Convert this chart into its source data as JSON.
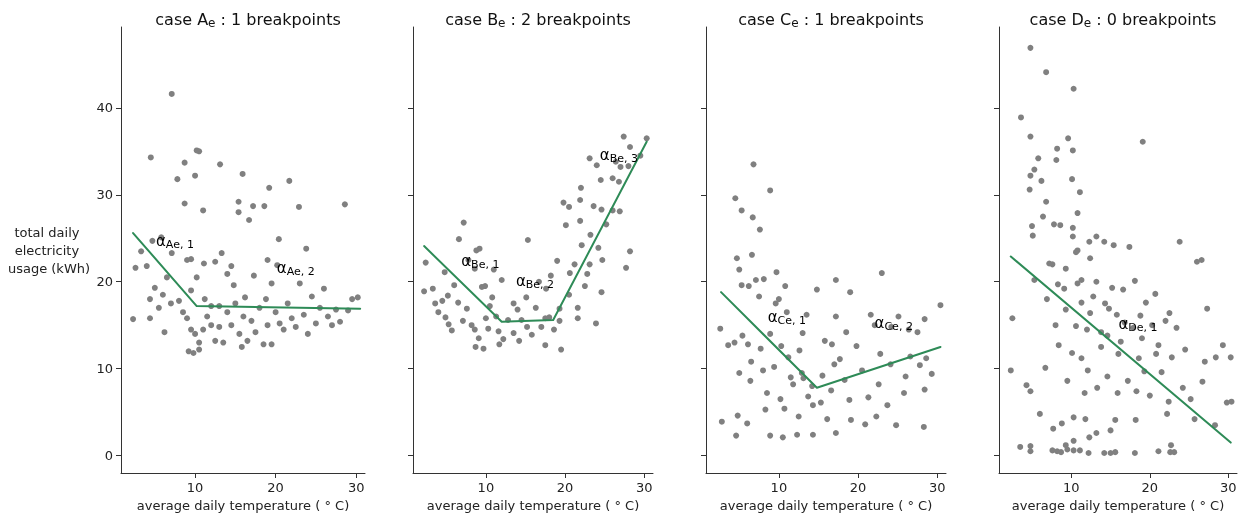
{
  "chart_data": [
    {
      "type": "scatter",
      "title": "case A$_{e}$ : 1 breakpoints",
      "xlabel": "average daily temperature ( ° C)",
      "ylabel": "total daily electricity usage (kWh)",
      "xlim": [
        0.8,
        31.1
      ],
      "xticks": [
        10,
        20,
        30
      ],
      "ylim": [
        -2,
        49.3
      ],
      "yticks": [
        0,
        10,
        20,
        30,
        40
      ],
      "series": [
        {
          "type": "scatter",
          "marker": "circle",
          "color": "#808080",
          "x": [
            7.1,
            4.5,
            10.2,
            10.5,
            8.7,
            13.1,
            10,
            7.8,
            15.9,
            21.7,
            19.2,
            28.6,
            8.7,
            15.4,
            15.4,
            17.2,
            18.6,
            22.9,
            11,
            16.7,
            20.4,
            23.8,
            5.8,
            4.7,
            3.3,
            7.1,
            13.3,
            9.0,
            9.5,
            11.1,
            12.5,
            14.5,
            20.2,
            19,
            2.6,
            4,
            17.3,
            14,
            2.3,
            4.4,
            6.2,
            5,
            6,
            7,
            8,
            8.5,
            9,
            9.5,
            10,
            10.5,
            9.2,
            9.8,
            10.5,
            11,
            11.5,
            12,
            12.5,
            13,
            13.5,
            14,
            14.5,
            15,
            15.5,
            15.8,
            16,
            16.5,
            17,
            17.5,
            18,
            18.5,
            19,
            19.5,
            20,
            20.5,
            21,
            21.5,
            22,
            22.5,
            23,
            23.5,
            24,
            24.5,
            25,
            25.5,
            26,
            26.5,
            27,
            27.5,
            28,
            29,
            29.5,
            30.2,
            19.5,
            18.8,
            16.2,
            13,
            11.2,
            10.2,
            9.5,
            12,
            14.8,
            6.5,
            5.5,
            4.4
          ],
          "values": [
            41.6,
            34.3,
            35.1,
            35,
            33.7,
            33.5,
            32.2,
            31.8,
            32.4,
            31.6,
            30.8,
            28.9,
            29,
            29.2,
            28,
            28.7,
            28.7,
            28.6,
            28.2,
            27.1,
            24.9,
            23.8,
            25.1,
            24.7,
            23.5,
            23.3,
            23.3,
            22.5,
            22.6,
            22.1,
            22.3,
            21.8,
            21.9,
            22.5,
            21.6,
            21.8,
            20.7,
            20.9,
            15.7,
            15.8,
            14.2,
            19.3,
            18.5,
            17.5,
            17.8,
            16.5,
            15.8,
            14.5,
            14,
            13,
            12,
            11.8,
            12.2,
            14.5,
            16,
            15,
            13.2,
            14.8,
            13,
            16.5,
            15,
            17.5,
            14,
            12.5,
            16,
            13.2,
            15.5,
            14.2,
            17,
            12.8,
            15,
            12.8,
            16.5,
            15.2,
            14.5,
            17.5,
            15.8,
            14.8,
            19.8,
            16.2,
            14,
            18.3,
            15.2,
            17,
            19.2,
            16,
            15,
            16.8,
            15.4,
            16.7,
            18,
            18.2,
            19.8,
            18,
            18.2,
            17.2,
            18,
            20.5,
            19,
            17.2,
            19.6,
            20.5,
            17,
            18
          ]
        },
        {
          "type": "line",
          "color": "#2e8b57",
          "x": [
            2.3,
            10.2,
            30.5
          ],
          "values": [
            25.6,
            17.2,
            16.9
          ]
        }
      ],
      "annotations": [
        {
          "text": "α$_{Ae, 1}$",
          "x": 7.5,
          "y": 20.1
        },
        {
          "text": "α$_{Ae, 2}$",
          "x": 22.5,
          "y": 17
        }
      ]
    },
    {
      "type": "scatter",
      "title": "case B$_{e}$ : 2 breakpoints",
      "xlabel": "average daily temperature ( ° C)",
      "xlim": [
        0.8,
        31.1
      ],
      "xticks": [
        10,
        20,
        30
      ],
      "ylim": [
        -2,
        49.3
      ],
      "yticks": [
        0,
        10,
        20,
        30,
        40
      ],
      "tick_labels": "x",
      "series": [
        {
          "type": "scatter",
          "marker": "circle",
          "color": "#808080",
          "x": [
            27.4,
            30.3,
            28.2,
            29.5,
            23.1,
            26.4,
            24,
            27,
            28,
            26,
            24.5,
            22,
            26.8,
            19.8,
            20.5,
            23.6,
            24.6,
            21.9,
            26,
            20.1,
            21.9,
            23.2,
            25.2,
            26.9,
            28.2,
            27.7,
            24.6,
            23.9,
            21.6,
            19.5,
            17.5,
            22.1,
            21.2,
            19,
            20.6,
            22.5,
            18.2,
            16.7,
            15.3,
            23.1,
            24.2,
            21.6,
            22.8,
            24.7,
            20.5,
            2.2,
            2.4,
            3.3,
            7.2,
            6.6,
            8.8,
            9.2,
            7.8,
            4.8,
            8.6,
            3.6,
            4,
            4.5,
            4.9,
            5.2,
            5.7,
            5.3,
            6.5,
            7.1,
            7.6,
            8.2,
            8.6,
            9.1,
            9.7,
            8.7,
            10,
            10.5,
            10.8,
            11.3,
            11.6,
            12.2,
            12.8,
            13.5,
            14,
            14.5,
            15.2,
            15.8,
            16.3,
            17,
            17.5,
            18,
            18.6,
            19.3,
            12,
            9.5,
            6,
            11,
            13.5,
            15.1,
            10.3,
            11.7,
            14.2,
            9.9,
            17.6,
            19.3
          ],
          "values": [
            36.7,
            36.5,
            35.5,
            34.5,
            34.2,
            33.8,
            33.4,
            33.2,
            33.3,
            31.9,
            31.7,
            30.8,
            31.5,
            29.1,
            28.6,
            28.7,
            28.3,
            29.4,
            28.2,
            26.5,
            27,
            25.4,
            26.6,
            28.1,
            23.5,
            21.6,
            18.8,
            15.2,
            15.8,
            12.2,
            12.7,
            24.2,
            22,
            22.4,
            21,
            19.5,
            20.7,
            20,
            24.8,
            22,
            23.9,
            17,
            20.9,
            22.5,
            18.5,
            18.9,
            22.2,
            19.2,
            26.8,
            24.9,
            23.6,
            23.8,
            22.5,
            21.1,
            21.5,
            17.5,
            16.5,
            17.8,
            15.9,
            18.4,
            14.4,
            15.1,
            17.6,
            15.5,
            16.9,
            15,
            14.5,
            13.5,
            12.3,
            12.5,
            15.8,
            17.2,
            18.2,
            16,
            14.3,
            13.4,
            15.6,
            14.1,
            16.8,
            15.6,
            14.8,
            13.9,
            17,
            14.8,
            15.8,
            15.9,
            14.5,
            16.9,
            20.2,
            19.4,
            19.6,
            21.4,
            17.5,
            18.2,
            14.6,
            12.8,
            13.2,
            19.5,
            19.2,
            15.5
          ]
        },
        {
          "type": "line",
          "color": "#2e8b57",
          "x": [
            2.2,
            12,
            18.5,
            30.3
          ],
          "values": [
            24.1,
            15.4,
            15.6,
            36.1
          ]
        }
      ],
      "annotations": [
        {
          "text": "α$_{Be, 1}$",
          "x": 9.3,
          "y": 17.8
        },
        {
          "text": "α$_{Be, 2}$",
          "x": 16.2,
          "y": 15.5
        },
        {
          "text": "α$_{Be, 3}$",
          "x": 26.8,
          "y": 30
        }
      ]
    },
    {
      "type": "scatter",
      "title": "case C$_{e}$ : 1 breakpoints",
      "xlabel": "average daily temperature ( ° C)",
      "xlim": [
        0.8,
        31.1
      ],
      "xticks": [
        10,
        20,
        30
      ],
      "ylim": [
        -2,
        49.3
      ],
      "yticks": [
        0,
        10,
        20,
        30,
        40
      ],
      "tick_labels": "x",
      "series": [
        {
          "type": "scatter",
          "marker": "circle",
          "color": "#808080",
          "x": [
            6.8,
            8.9,
            4.5,
            5.3,
            6.7,
            7.6,
            4.7,
            6.6,
            5,
            9.7,
            7.1,
            8.1,
            23,
            17.2,
            14.8,
            19,
            10.8,
            5.3,
            6.2,
            7.5,
            9.6,
            10,
            13.5,
            11,
            17.2,
            21.6,
            25.1,
            28.4,
            30.4,
            24.2,
            27.5,
            26.4,
            22.1,
            18.5,
            15.8,
            13,
            8.9,
            2.6,
            5.4,
            3.6,
            4.4,
            6.1,
            7.7,
            10.3,
            12.6,
            16.7,
            19.8,
            22.8,
            26.6,
            28.6,
            5,
            6.5,
            8,
            9.4,
            11.5,
            12.9,
            14.2,
            15.5,
            17,
            18.3,
            20.5,
            22.6,
            24.1,
            26,
            27.8,
            29.3,
            6.4,
            8.5,
            10.2,
            11.8,
            13.7,
            15.3,
            16.6,
            18.9,
            21.3,
            23.7,
            25.8,
            28.4,
            4.8,
            6,
            8.3,
            10.7,
            12.5,
            14.3,
            16.1,
            19.1,
            22.3,
            24.8,
            28.3,
            2.8,
            4.6,
            8.9,
            10.5,
            12.3,
            14.3,
            17.2,
            20.9,
            13.1,
            11.2,
            17.7
          ],
          "values": [
            33.5,
            30.5,
            29.6,
            28.2,
            27.4,
            26,
            22.7,
            23.1,
            21.4,
            21.1,
            20.2,
            20.3,
            21,
            20.2,
            19.1,
            18.8,
            19.5,
            19.6,
            19.5,
            18.3,
            17.5,
            18,
            16.2,
            16.5,
            16,
            16.2,
            16,
            15.7,
            17.3,
            14.8,
            14.2,
            14.5,
            15,
            14.2,
            13.2,
            14.1,
            14,
            14.6,
            13.8,
            12.7,
            13,
            12.8,
            12.3,
            12.6,
            12.1,
            12.8,
            12.6,
            11.7,
            11.4,
            11.2,
            9.5,
            10.8,
            9.8,
            10.2,
            9,
            9.5,
            8,
            9.2,
            10.5,
            8.7,
            9.8,
            8.2,
            10.5,
            9.1,
            10.4,
            9.4,
            8.6,
            7.2,
            6.5,
            8.2,
            6.8,
            6.1,
            7.5,
            6.4,
            6.7,
            5.8,
            7.2,
            7.6,
            4.6,
            3.7,
            5.3,
            5.4,
            4.5,
            5.8,
            4.2,
            4.1,
            4.5,
            3.5,
            3.3,
            3.9,
            2.3,
            2.3,
            2.1,
            2.4,
            2.4,
            2.6,
            3.6,
            8.9,
            11.3,
            11.1
          ]
        },
        {
          "type": "line",
          "color": "#2e8b57",
          "x": [
            2.7,
            14.8,
            30.4
          ],
          "values": [
            18.8,
            7.8,
            12.5
          ]
        }
      ],
      "annotations": [
        {
          "text": "α$_{Ce, 1}$",
          "x": 11,
          "y": 11.3
        },
        {
          "text": "α$_{Ce, 2}$",
          "x": 24.5,
          "y": 10.7
        }
      ]
    },
    {
      "type": "scatter",
      "title": "case D$_{e}$ : 0 breakpoints",
      "xlabel": "average daily temperature ( ° C)",
      "xlim": [
        0.8,
        31.1
      ],
      "xticks": [
        10,
        20,
        30
      ],
      "ylim": [
        -2,
        49.3
      ],
      "yticks": [
        0,
        10,
        20,
        30,
        40
      ],
      "tick_labels": "x",
      "series": [
        {
          "type": "scatter",
          "marker": "circle",
          "color": "#808080",
          "x": [
            4.8,
            6.8,
            10.3,
            3.6,
            4.8,
            9.6,
            8.2,
            10.2,
            19.1,
            5.8,
            8.1,
            5.3,
            4.8,
            10.1,
            6.2,
            4.7,
            11.1,
            6.8,
            10.8,
            6.4,
            5,
            7.8,
            8.6,
            10.2,
            5.1,
            10.2,
            13.2,
            12.3,
            14.2,
            15.4,
            17.4,
            23.8,
            10.6,
            10.8,
            12.4,
            26,
            26.6,
            7.2,
            7.6,
            9.3,
            11.3,
            13.2,
            18.1,
            5.3,
            8.3,
            9.1,
            10.8,
            15.2,
            16.6,
            20.7,
            6.9,
            11.3,
            14.3,
            19.5,
            9.3,
            12.4,
            15.8,
            18.8,
            22.5,
            27.3,
            2.5,
            8,
            10.6,
            12,
            13.8,
            16.8,
            17.9,
            20.3,
            22,
            23.4,
            14.6,
            16.3,
            19,
            21.1,
            24.5,
            29.3,
            8.4,
            10.1,
            11.3,
            13.8,
            16,
            18.6,
            20.8,
            22.8,
            27,
            28.4,
            30.3,
            2.3,
            6.7,
            9.5,
            12.1,
            14.6,
            17.2,
            19.3,
            21.5,
            24.2,
            26.7,
            4.3,
            4.8,
            11.7,
            13.3,
            15.9,
            18.3,
            20,
            22.4,
            25.2,
            29.8,
            6,
            8.8,
            10.3,
            11.8,
            15.6,
            18.2,
            22.2,
            25.7,
            28.3,
            7.7,
            9.3,
            10.3,
            12.3,
            13.2,
            15,
            3.5,
            4.8,
            4.8,
            7.6,
            8.2,
            8.7,
            9.5,
            10.3,
            11.1,
            12.2,
            14.2,
            15,
            15.6,
            18.1,
            21.1,
            22.7,
            22.6,
            23.1,
            30.4,
            14.8,
            12.8
          ],
          "values": [
            46.9,
            44.1,
            42.2,
            38.9,
            36.7,
            36.5,
            35.3,
            35.1,
            36.1,
            34.2,
            34,
            32.9,
            32.2,
            31.8,
            31.6,
            30.6,
            30.3,
            29.2,
            27.9,
            27.5,
            26.4,
            26.6,
            26.5,
            26.2,
            25.3,
            25.2,
            25.2,
            24.6,
            24.6,
            24.2,
            24,
            24.6,
            23.4,
            23.6,
            22.7,
            22.3,
            22.5,
            22.1,
            22,
            21.5,
            20.2,
            20,
            20.1,
            20.2,
            19.7,
            19.2,
            19.8,
            19.3,
            19.1,
            18.6,
            18,
            17.6,
            17.5,
            17.6,
            16.8,
            16.4,
            16.2,
            16.1,
            16.4,
            16.9,
            15.8,
            15,
            14.9,
            14.5,
            14.2,
            15.3,
            14.7,
            15,
            15.5,
            14.7,
            13.8,
            13.1,
            13.5,
            12.7,
            12.2,
            12.7,
            12.7,
            11.8,
            11.2,
            12.5,
            11.7,
            11.2,
            11.7,
            11.3,
            10.8,
            11.3,
            11.3,
            9.8,
            10.1,
            8.6,
            9.8,
            9.1,
            8.6,
            9.7,
            9.6,
            7.8,
            8.5,
            8.1,
            7.4,
            7.2,
            7.8,
            7.2,
            7.4,
            6.9,
            6.2,
            6.5,
            6.1,
            4.8,
            3.7,
            4.4,
            4.2,
            4.1,
            4.1,
            4.8,
            4.2,
            3.5,
            3.1,
            1.2,
            1.7,
            2.1,
            2.6,
            2.9,
            1,
            1.1,
            0.5,
            0.6,
            0.5,
            0.4,
            0.7,
            0.6,
            0.6,
            0.3,
            0.3,
            0.3,
            0.4,
            0.3,
            0.5,
            1.2,
            0.4,
            0.4,
            6.2,
            16.9,
            18.3
          ]
        },
        {
          "type": "line",
          "color": "#2e8b57",
          "x": [
            2.3,
            30.3
          ],
          "values": [
            22.9,
            1.5
          ]
        }
      ],
      "annotations": [
        {
          "text": "α$_{De, 1}$",
          "x": 18.5,
          "y": 10.5
        }
      ]
    }
  ]
}
